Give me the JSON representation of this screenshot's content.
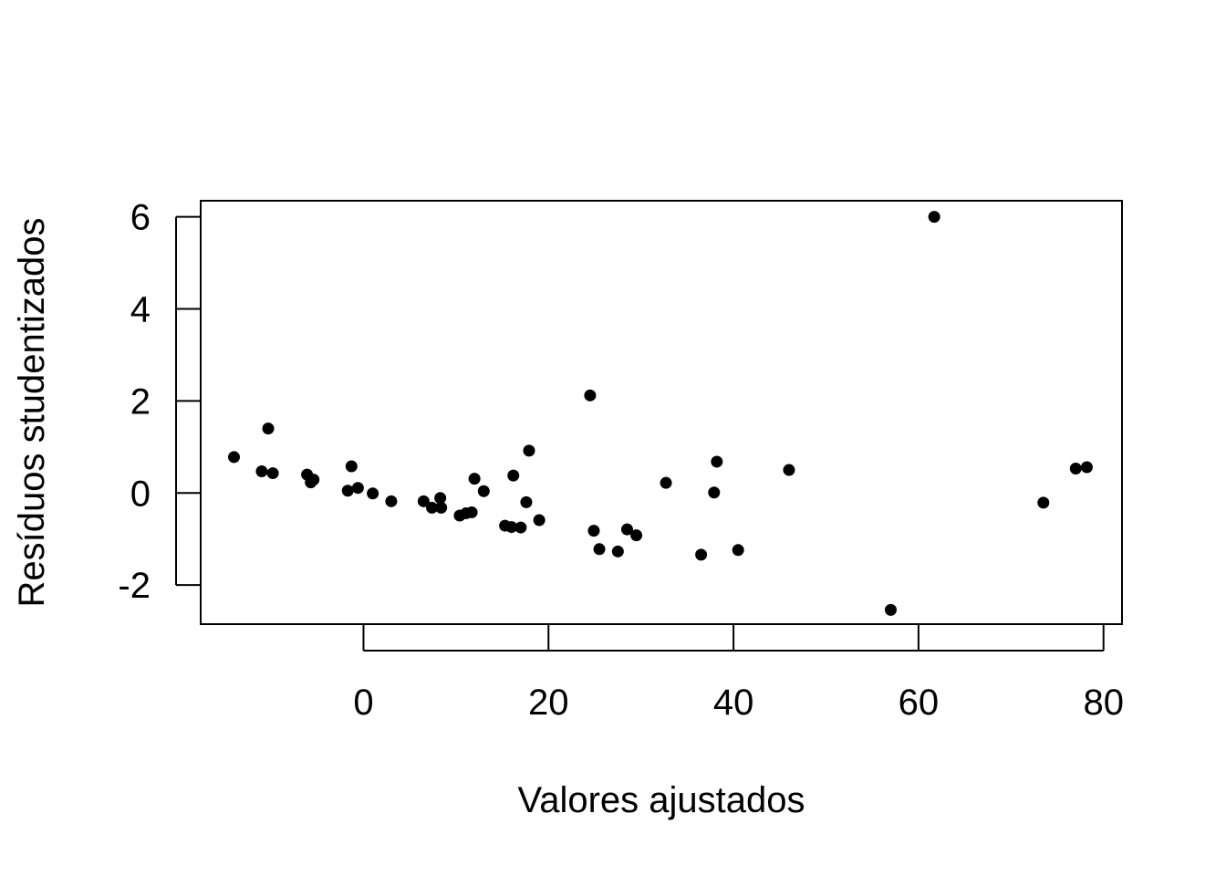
{
  "chart_data": {
    "type": "scatter",
    "title": "",
    "xlabel": "Valores ajustados",
    "ylabel": "Resíduos studentizados",
    "xlim": [
      -17.6,
      82
    ],
    "ylim": [
      -2.85,
      6.35
    ],
    "xticks": [
      0,
      20,
      40,
      60,
      80
    ],
    "yticks": [
      -2,
      0,
      2,
      4,
      6
    ],
    "grid": false,
    "legend": "none",
    "point_color": "#000000",
    "points": [
      {
        "x": -14.0,
        "y": 0.78
      },
      {
        "x": -11.0,
        "y": 0.47
      },
      {
        "x": -10.3,
        "y": 1.4
      },
      {
        "x": -9.8,
        "y": 0.43
      },
      {
        "x": -6.1,
        "y": 0.4
      },
      {
        "x": -5.7,
        "y": 0.23
      },
      {
        "x": -5.4,
        "y": 0.29
      },
      {
        "x": -1.7,
        "y": 0.05
      },
      {
        "x": -1.3,
        "y": 0.58
      },
      {
        "x": -0.6,
        "y": 0.11
      },
      {
        "x": 1.0,
        "y": -0.01
      },
      {
        "x": 3.0,
        "y": -0.18
      },
      {
        "x": 6.5,
        "y": -0.18
      },
      {
        "x": 7.4,
        "y": -0.32
      },
      {
        "x": 8.3,
        "y": -0.11
      },
      {
        "x": 8.4,
        "y": -0.32
      },
      {
        "x": 10.4,
        "y": -0.49
      },
      {
        "x": 11.1,
        "y": -0.44
      },
      {
        "x": 11.7,
        "y": -0.42
      },
      {
        "x": 12.0,
        "y": 0.31
      },
      {
        "x": 13.0,
        "y": 0.04
      },
      {
        "x": 15.3,
        "y": -0.71
      },
      {
        "x": 16.0,
        "y": -0.74
      },
      {
        "x": 16.2,
        "y": 0.38
      },
      {
        "x": 17.0,
        "y": -0.75
      },
      {
        "x": 17.6,
        "y": -0.2
      },
      {
        "x": 17.9,
        "y": 0.92
      },
      {
        "x": 19.0,
        "y": -0.59
      },
      {
        "x": 24.5,
        "y": 2.12
      },
      {
        "x": 24.9,
        "y": -0.82
      },
      {
        "x": 25.5,
        "y": -1.22
      },
      {
        "x": 27.5,
        "y": -1.27
      },
      {
        "x": 28.5,
        "y": -0.79
      },
      {
        "x": 29.5,
        "y": -0.92
      },
      {
        "x": 32.7,
        "y": 0.22
      },
      {
        "x": 36.5,
        "y": -1.34
      },
      {
        "x": 37.9,
        "y": 0.01
      },
      {
        "x": 38.2,
        "y": 0.68
      },
      {
        "x": 40.5,
        "y": -1.24
      },
      {
        "x": 46.0,
        "y": 0.5
      },
      {
        "x": 57.0,
        "y": -2.54
      },
      {
        "x": 61.7,
        "y": 6.0
      },
      {
        "x": 73.5,
        "y": -0.21
      },
      {
        "x": 77.0,
        "y": 0.53
      },
      {
        "x": 78.2,
        "y": 0.56
      }
    ]
  }
}
